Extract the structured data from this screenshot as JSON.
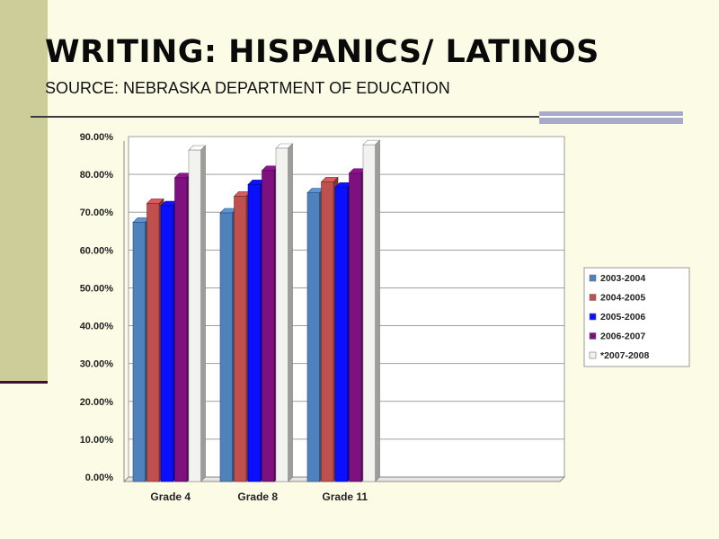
{
  "slide": {
    "title": "WRITING: HISPANICS/ LATINOS",
    "subtitle": "SOURCE: NEBRASKA DEPARTMENT OF EDUCATION"
  },
  "colors": {
    "background": "#fcfce6",
    "sidebar": "#cdcd9a",
    "plot_bg": "#ffffff",
    "grid": "#a0a0a0"
  },
  "chart_data": {
    "type": "bar",
    "categories": [
      "Grade 4",
      "Grade 8",
      "Grade 11"
    ],
    "series": [
      {
        "name": "2003-2004",
        "color": "#4f81bd",
        "values": [
          68.5,
          71.0,
          76.3
        ]
      },
      {
        "name": "2004-2005",
        "color": "#c0504d",
        "values": [
          73.5,
          75.4,
          79.2
        ]
      },
      {
        "name": "2005-2006",
        "color": "#0a10ff",
        "values": [
          72.9,
          78.5,
          77.8
        ]
      },
      {
        "name": "2006-2007",
        "color": "#7e1080",
        "values": [
          80.3,
          82.2,
          81.5
        ]
      },
      {
        "name": "*2007-2008",
        "color": "#f2f2ee",
        "values": [
          87.6,
          88.1,
          89.0
        ]
      }
    ],
    "ylim": [
      0,
      90
    ],
    "y_ticks": [
      "0.00%",
      "10.00%",
      "20.00%",
      "30.00%",
      "40.00%",
      "50.00%",
      "60.00%",
      "70.00%",
      "80.00%",
      "90.00%"
    ],
    "grid": true,
    "legend_position": "right",
    "xlabel": "",
    "ylabel": ""
  }
}
